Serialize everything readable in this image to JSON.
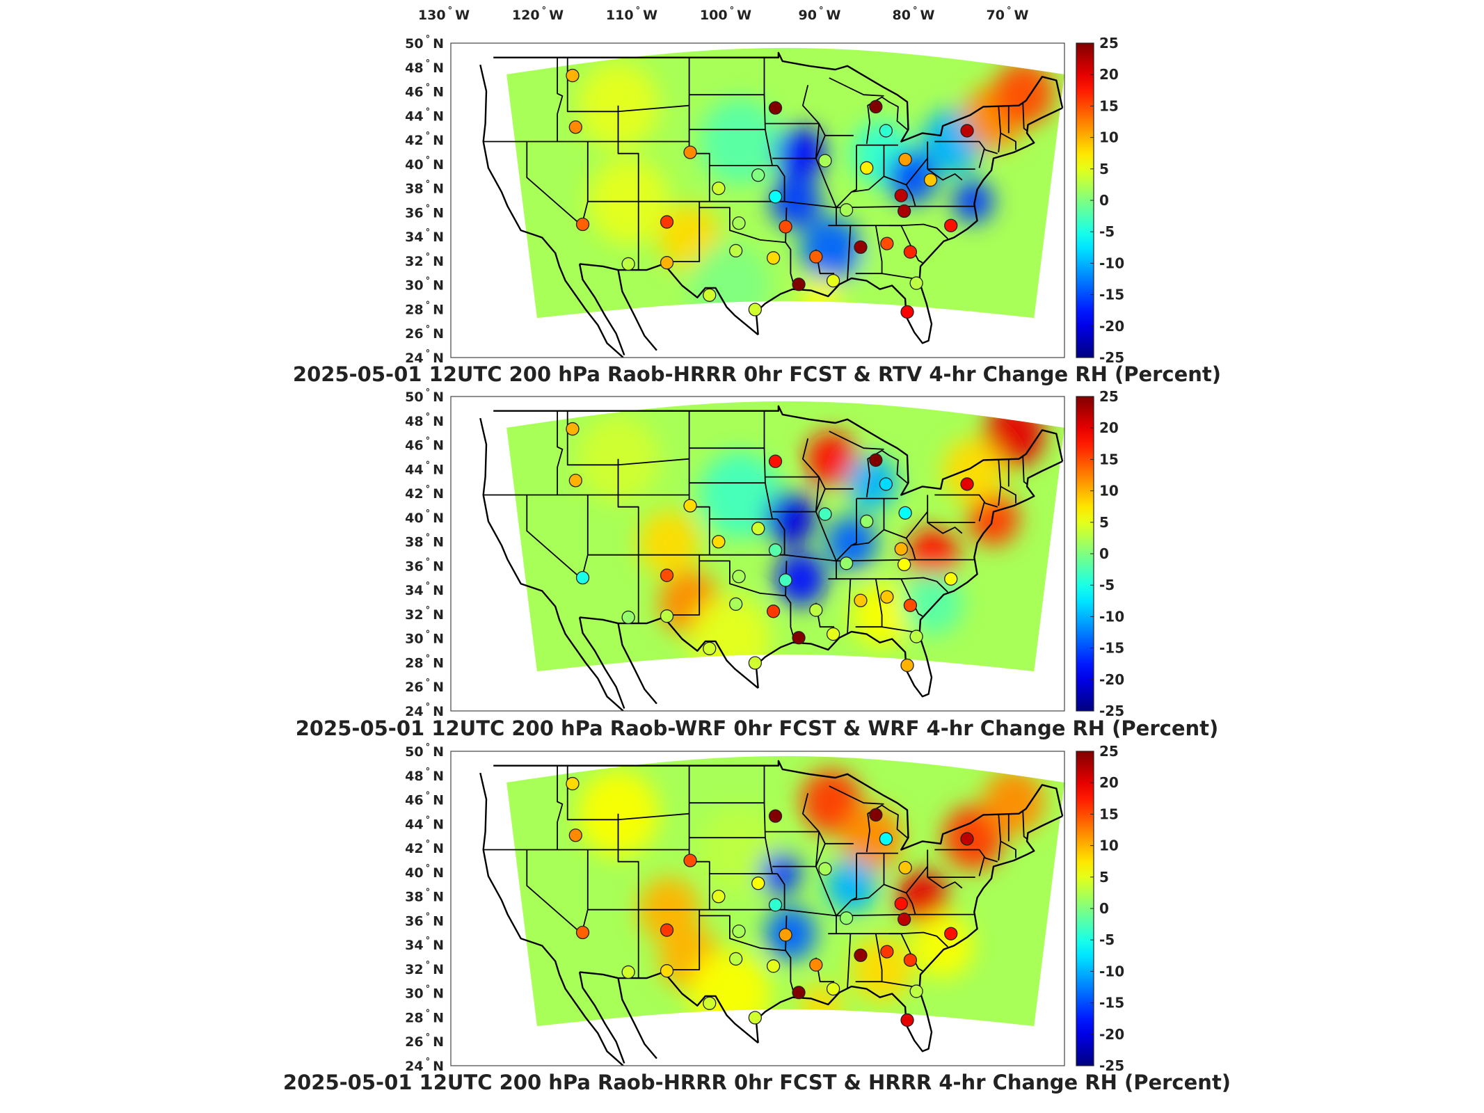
{
  "lon_labels": [
    "130",
    "120",
    "110",
    "100",
    "90",
    "80",
    "70"
  ],
  "lon_suffix": "W",
  "lat_labels": [
    "50",
    "48",
    "46",
    "44",
    "42",
    "40",
    "38",
    "36",
    "34",
    "32",
    "30",
    "28",
    "26",
    "24"
  ],
  "lat_suffix": "N",
  "degree_mark": "°",
  "colorbar": {
    "ticks": [
      "25",
      "20",
      "15",
      "10",
      "5",
      "0",
      "-5",
      "-10",
      "-15",
      "-20",
      "-25"
    ],
    "range": [
      -25,
      25
    ],
    "colormap": "jet"
  },
  "panels": [
    {
      "title": "2025-05-01 12UTC 200 hPa Raob-HRRR 0hr FCST & RTV 4-hr Change RH (Percent)",
      "stations": [
        {
          "lon": -115.5,
          "lat": 47.5,
          "value": 10
        },
        {
          "lon": -115.2,
          "lat": 43.2,
          "value": 12
        },
        {
          "lon": -95.5,
          "lat": 44.8,
          "value": 25
        },
        {
          "lon": -85.6,
          "lat": 44.9,
          "value": 27
        },
        {
          "lon": -84.6,
          "lat": 42.9,
          "value": -4
        },
        {
          "lon": -76.6,
          "lat": 42.9,
          "value": 22
        },
        {
          "lon": -103.9,
          "lat": 41.1,
          "value": 12
        },
        {
          "lon": -90.6,
          "lat": 40.4,
          "value": 2
        },
        {
          "lon": -86.5,
          "lat": 39.8,
          "value": 7
        },
        {
          "lon": -82.7,
          "lat": 40.5,
          "value": 11
        },
        {
          "lon": -101.1,
          "lat": 38.1,
          "value": 4
        },
        {
          "lon": -97.2,
          "lat": 39.2,
          "value": 0
        },
        {
          "lon": -95.5,
          "lat": 37.4,
          "value": -6
        },
        {
          "lon": -83.1,
          "lat": 37.5,
          "value": 22
        },
        {
          "lon": -82.8,
          "lat": 36.2,
          "value": 23
        },
        {
          "lon": -80.2,
          "lat": 38.8,
          "value": 9
        },
        {
          "lon": -88.5,
          "lat": 36.3,
          "value": 2
        },
        {
          "lon": -114.5,
          "lat": 35.1,
          "value": 14
        },
        {
          "lon": -106.2,
          "lat": 35.3,
          "value": 16
        },
        {
          "lon": -99.1,
          "lat": 35.2,
          "value": 2
        },
        {
          "lon": -94.5,
          "lat": 34.9,
          "value": 15
        },
        {
          "lon": -78.2,
          "lat": 35.0,
          "value": 18
        },
        {
          "lon": -87.1,
          "lat": 33.2,
          "value": 24
        },
        {
          "lon": -84.5,
          "lat": 33.5,
          "value": 15
        },
        {
          "lon": -82.2,
          "lat": 32.8,
          "value": 17
        },
        {
          "lon": -99.4,
          "lat": 32.9,
          "value": 3
        },
        {
          "lon": -95.7,
          "lat": 32.3,
          "value": 8
        },
        {
          "lon": -91.5,
          "lat": 32.4,
          "value": 14
        },
        {
          "lon": -106.2,
          "lat": 31.9,
          "value": 10
        },
        {
          "lon": -110.0,
          "lat": 31.8,
          "value": 3
        },
        {
          "lon": -93.2,
          "lat": 30.1,
          "value": 27
        },
        {
          "lon": -89.8,
          "lat": 30.4,
          "value": 5
        },
        {
          "lon": -81.6,
          "lat": 30.2,
          "value": 3
        },
        {
          "lon": -97.5,
          "lat": 28.0,
          "value": 4
        },
        {
          "lon": -102.0,
          "lat": 29.2,
          "value": 4
        },
        {
          "lon": -82.5,
          "lat": 27.8,
          "value": 19
        }
      ]
    },
    {
      "title": "2025-05-01 12UTC 200 hPa Raob-WRF 0hr FCST & WRF 4-hr Change RH (Percent)",
      "stations": [
        {
          "lon": -115.5,
          "lat": 47.5,
          "value": 10
        },
        {
          "lon": -115.2,
          "lat": 43.2,
          "value": 10
        },
        {
          "lon": -95.5,
          "lat": 44.8,
          "value": 18
        },
        {
          "lon": -85.6,
          "lat": 44.9,
          "value": 27
        },
        {
          "lon": -84.6,
          "lat": 42.9,
          "value": -8
        },
        {
          "lon": -76.6,
          "lat": 42.9,
          "value": 20
        },
        {
          "lon": -103.9,
          "lat": 41.1,
          "value": 8
        },
        {
          "lon": -90.6,
          "lat": 40.4,
          "value": -3
        },
        {
          "lon": -86.5,
          "lat": 39.8,
          "value": 1
        },
        {
          "lon": -82.7,
          "lat": 40.5,
          "value": -6
        },
        {
          "lon": -101.1,
          "lat": 38.1,
          "value": 8
        },
        {
          "lon": -97.2,
          "lat": 39.2,
          "value": 4
        },
        {
          "lon": -95.5,
          "lat": 37.4,
          "value": -2
        },
        {
          "lon": -83.1,
          "lat": 37.5,
          "value": 10
        },
        {
          "lon": -82.8,
          "lat": 36.2,
          "value": 6
        },
        {
          "lon": -88.5,
          "lat": 36.3,
          "value": 1
        },
        {
          "lon": -114.5,
          "lat": 35.1,
          "value": -5
        },
        {
          "lon": -106.2,
          "lat": 35.3,
          "value": 15
        },
        {
          "lon": -99.1,
          "lat": 35.2,
          "value": 2
        },
        {
          "lon": -94.5,
          "lat": 34.9,
          "value": -3
        },
        {
          "lon": -78.2,
          "lat": 35.0,
          "value": 6
        },
        {
          "lon": -87.1,
          "lat": 33.2,
          "value": 9
        },
        {
          "lon": -84.5,
          "lat": 33.5,
          "value": 9
        },
        {
          "lon": -82.2,
          "lat": 32.8,
          "value": 15
        },
        {
          "lon": -99.4,
          "lat": 32.9,
          "value": 2
        },
        {
          "lon": -95.7,
          "lat": 32.3,
          "value": 16
        },
        {
          "lon": -91.5,
          "lat": 32.4,
          "value": 3
        },
        {
          "lon": -106.2,
          "lat": 31.9,
          "value": 3
        },
        {
          "lon": -110.0,
          "lat": 31.8,
          "value": 1
        },
        {
          "lon": -93.2,
          "lat": 30.1,
          "value": 27
        },
        {
          "lon": -89.8,
          "lat": 30.4,
          "value": 5
        },
        {
          "lon": -81.6,
          "lat": 30.2,
          "value": 3
        },
        {
          "lon": -97.5,
          "lat": 28.0,
          "value": 4
        },
        {
          "lon": -102.0,
          "lat": 29.2,
          "value": 4
        },
        {
          "lon": -82.5,
          "lat": 27.8,
          "value": 10
        }
      ]
    },
    {
      "title": "2025-05-01 12UTC 200 hPa Raob-HRRR 0hr FCST & HRRR 4-hr Change RH (Percent)",
      "stations": [
        {
          "lon": -115.5,
          "lat": 47.5,
          "value": 8
        },
        {
          "lon": -115.2,
          "lat": 43.2,
          "value": 12
        },
        {
          "lon": -95.5,
          "lat": 44.8,
          "value": 25
        },
        {
          "lon": -85.6,
          "lat": 44.9,
          "value": 27
        },
        {
          "lon": -84.6,
          "lat": 42.9,
          "value": -6
        },
        {
          "lon": -76.6,
          "lat": 42.9,
          "value": 22
        },
        {
          "lon": -103.9,
          "lat": 41.1,
          "value": 15
        },
        {
          "lon": -90.6,
          "lat": 40.4,
          "value": 2
        },
        {
          "lon": -82.7,
          "lat": 40.5,
          "value": 9
        },
        {
          "lon": -101.1,
          "lat": 38.1,
          "value": 5
        },
        {
          "lon": -97.2,
          "lat": 39.2,
          "value": 6
        },
        {
          "lon": -95.5,
          "lat": 37.4,
          "value": -4
        },
        {
          "lon": -83.1,
          "lat": 37.5,
          "value": 18
        },
        {
          "lon": -82.8,
          "lat": 36.2,
          "value": 22
        },
        {
          "lon": -88.5,
          "lat": 36.3,
          "value": 1
        },
        {
          "lon": -114.5,
          "lat": 35.1,
          "value": 14
        },
        {
          "lon": -106.2,
          "lat": 35.3,
          "value": 16
        },
        {
          "lon": -99.1,
          "lat": 35.2,
          "value": 2
        },
        {
          "lon": -94.5,
          "lat": 34.9,
          "value": 11
        },
        {
          "lon": -78.2,
          "lat": 35.0,
          "value": 18
        },
        {
          "lon": -87.1,
          "lat": 33.2,
          "value": 24
        },
        {
          "lon": -84.5,
          "lat": 33.5,
          "value": 16
        },
        {
          "lon": -82.2,
          "lat": 32.8,
          "value": 16
        },
        {
          "lon": -99.4,
          "lat": 32.9,
          "value": 3
        },
        {
          "lon": -95.7,
          "lat": 32.3,
          "value": 5
        },
        {
          "lon": -91.5,
          "lat": 32.4,
          "value": 12
        },
        {
          "lon": -106.2,
          "lat": 31.9,
          "value": 8
        },
        {
          "lon": -110.0,
          "lat": 31.8,
          "value": 4
        },
        {
          "lon": -93.2,
          "lat": 30.1,
          "value": 27
        },
        {
          "lon": -89.8,
          "lat": 30.4,
          "value": 5
        },
        {
          "lon": -81.6,
          "lat": 30.2,
          "value": 3
        },
        {
          "lon": -97.5,
          "lat": 28.0,
          "value": 4
        },
        {
          "lon": -102.0,
          "lat": 29.2,
          "value": 4
        },
        {
          "lon": -82.5,
          "lat": 27.8,
          "value": 20
        }
      ]
    }
  ]
}
